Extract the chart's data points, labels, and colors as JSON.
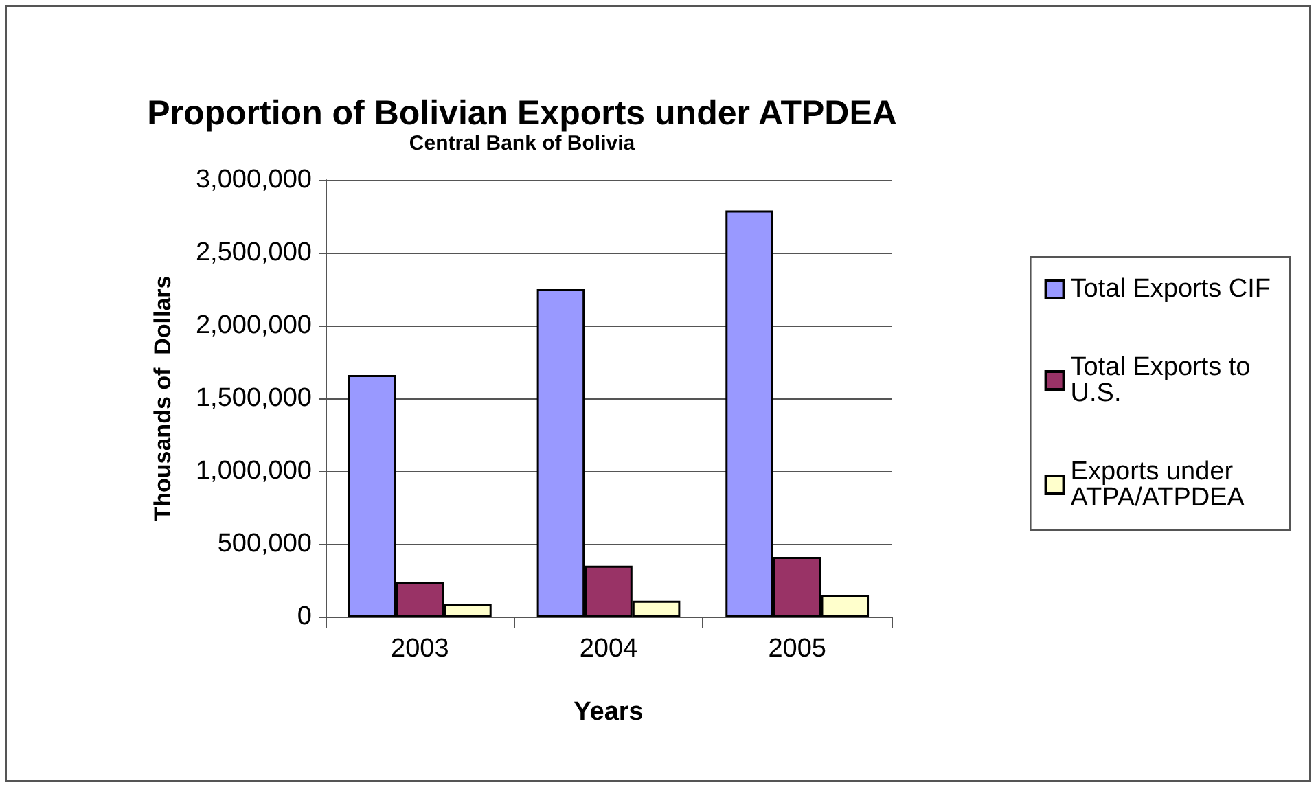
{
  "chart_data": {
    "type": "bar",
    "title": "Proportion of Bolivian Exports under ATPDEA",
    "subtitle": "Central Bank of Bolivia",
    "xlabel": "Years",
    "ylabel": "Thousands of  Dollars",
    "categories": [
      "2003",
      "2004",
      "2005"
    ],
    "series": [
      {
        "name": "Total Exports CIF",
        "color": "#9999ff",
        "values": [
          1660000,
          2250000,
          2790000
        ]
      },
      {
        "name": "Total Exports to U.S.",
        "color": "#993366",
        "values": [
          240000,
          350000,
          410000
        ]
      },
      {
        "name": "Exports under ATPA/ATPDEA",
        "color": "#ffffcc",
        "values": [
          90000,
          110000,
          150000
        ]
      }
    ],
    "ylim": [
      0,
      3000000
    ],
    "yticks": [
      0,
      {
        "value": 500000,
        "label": "500,000"
      },
      {
        "value": 1000000,
        "label": "1,000,000"
      },
      {
        "value": 1500000,
        "label": "1,500,000"
      },
      {
        "value": 2000000,
        "label": "2,000,000"
      },
      {
        "value": 2500000,
        "label": "2,500,000"
      },
      {
        "value": 3000000,
        "label": "3,000,000"
      }
    ],
    "grid": "y",
    "legend": "right"
  }
}
